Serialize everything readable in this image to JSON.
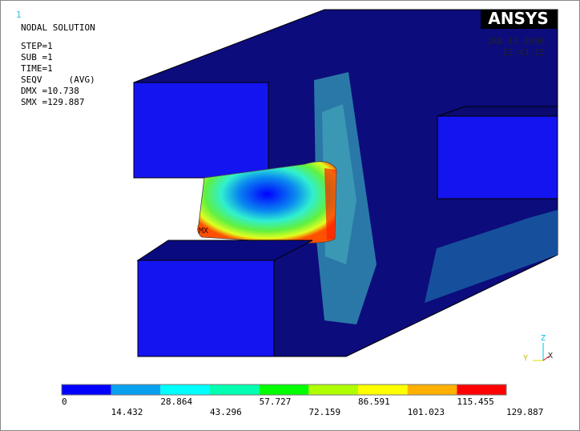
{
  "window_number": "1",
  "info": {
    "lines": [
      "NODAL SOLUTION",
      "STEP=1",
      "SUB =1",
      "TIME=1",
      "SEQV     (AVG)",
      "DMX =10.738",
      "SMX =129.887"
    ]
  },
  "logo": "ANSYS",
  "date": "JAN 11 2006",
  "time": "23:43:15",
  "max_marker": "MX",
  "triad": {
    "x": "X",
    "y": "Y",
    "z": "Z"
  },
  "legend": {
    "colors": [
      "#0000ff",
      "#0aa0f0",
      "#00ffff",
      "#00ffb0",
      "#00ff00",
      "#b0ff00",
      "#ffff00",
      "#ffb000",
      "#ff0000"
    ],
    "labels": [
      "0",
      "14.432",
      "28.864",
      "43.296",
      "57.727",
      "72.159",
      "86.591",
      "101.023",
      "115.455",
      "129.887"
    ]
  }
}
